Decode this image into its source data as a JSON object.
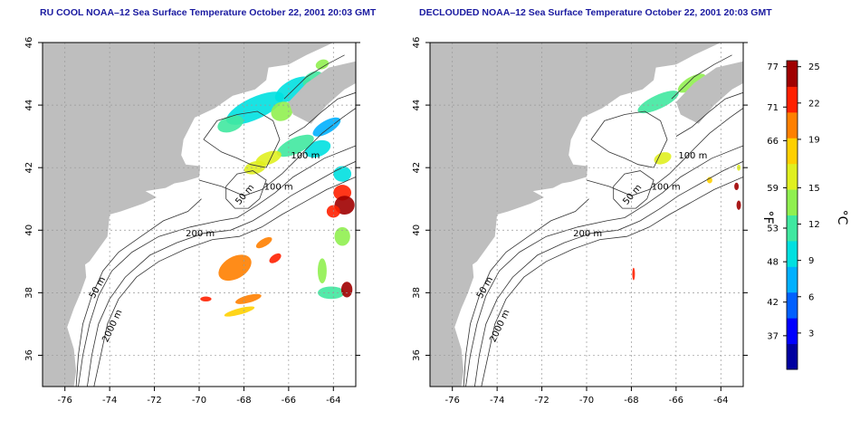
{
  "panels": [
    {
      "id": "left",
      "title": "RU COOL NOAA–12 Sea Surface Temperature October 22, 2001 20:03 GMT"
    },
    {
      "id": "right",
      "title": "DECLOUDED NOAA–12 Sea Surface Temperature October 22, 2001 20:03 GMT"
    }
  ],
  "map": {
    "lon_range": [
      -77.0,
      -63.0
    ],
    "lat_range": [
      35.0,
      46.0
    ],
    "lon_ticks": [
      -76,
      -74,
      -72,
      -70,
      -68,
      -66,
      -64
    ],
    "lat_ticks": [
      36,
      38,
      40,
      42,
      44,
      46
    ],
    "lon_tick_labels": [
      "-76",
      "-74",
      "-72",
      "-70",
      "-68",
      "-66",
      "-64"
    ],
    "lat_tick_labels": [
      "36",
      "38",
      "40",
      "42",
      "44",
      "46"
    ],
    "grid": "dotted",
    "land_color": "#bebebe",
    "contour_labels": [
      {
        "text": "100 m",
        "lon": -65.9,
        "lat": 42.3
      },
      {
        "text": "100 m",
        "lon": -67.1,
        "lat": 41.3
      },
      {
        "text": "50 m",
        "lon": -68.2,
        "lat": 40.8
      },
      {
        "text": "200 m",
        "lon": -70.6,
        "lat": 39.8
      },
      {
        "text": "50 m",
        "lon": -74.7,
        "lat": 37.8
      },
      {
        "text": "2000 m",
        "lon": -74.1,
        "lat": 36.4
      }
    ]
  },
  "colorbar": {
    "fahrenheit_label": "°F",
    "celsius_label": "°C",
    "fahrenheit_ticks": [
      "77",
      "71",
      "66",
      "59",
      "53",
      "48",
      "42",
      "37"
    ],
    "celsius_ticks": [
      "25",
      "22",
      "19",
      "15",
      "12",
      "9",
      "6",
      "3"
    ],
    "celsius_range": [
      0,
      25.5
    ],
    "colors": [
      "#0000a0",
      "#0000ff",
      "#0060ff",
      "#00b0ff",
      "#00e0e0",
      "#40e8a0",
      "#90f050",
      "#e0f020",
      "#ffd000",
      "#ff8000",
      "#ff2000",
      "#a00000"
    ]
  }
}
